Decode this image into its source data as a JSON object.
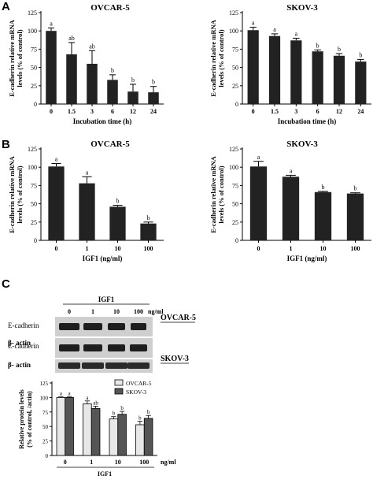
{
  "panels": {
    "A": {
      "letter": "A"
    },
    "B": {
      "letter": "B"
    },
    "C": {
      "letter": "C"
    }
  },
  "chart_data": [
    {
      "id": "A-ovcar",
      "type": "bar",
      "title": "OVCAR-5",
      "categories": [
        "0",
        "1.5",
        "3",
        "6",
        "12",
        "24"
      ],
      "values": [
        100,
        68,
        55,
        33,
        17,
        16
      ],
      "errors": [
        4,
        16,
        18,
        7,
        10,
        8
      ],
      "letters": [
        "a",
        "ab",
        "ab",
        "b",
        "b",
        "b"
      ],
      "ylabel": [
        "E-cadherin relative mRNA",
        "levels (% of control)"
      ],
      "xlabel": "Incubation time (h)",
      "ylim": [
        0,
        125
      ],
      "yticks": [
        0,
        25,
        50,
        75,
        100,
        125
      ],
      "grid": false
    },
    {
      "id": "A-skov",
      "type": "bar",
      "title": "SKOV-3",
      "categories": [
        "0",
        "1.5",
        "3",
        "6",
        "12",
        "24"
      ],
      "values": [
        101,
        93,
        87,
        72,
        66,
        58
      ],
      "errors": [
        4,
        3,
        3,
        2,
        3,
        3
      ],
      "letters": [
        "a",
        "a",
        "a",
        "b",
        "b",
        "b"
      ],
      "ylabel": [
        "E-cadherin relative mRNA",
        "levels (% of control)"
      ],
      "xlabel": "Incubation time (h)",
      "ylim": [
        0,
        125
      ],
      "yticks": [
        0,
        25,
        50,
        75,
        100,
        125
      ],
      "grid": false
    },
    {
      "id": "B-ovcar",
      "type": "bar",
      "title": "OVCAR-5",
      "categories": [
        "0",
        "1",
        "10",
        "100"
      ],
      "values": [
        101,
        78,
        46,
        23
      ],
      "errors": [
        4,
        9,
        2,
        2
      ],
      "letters": [
        "a",
        "a",
        "b",
        "b"
      ],
      "ylabel": [
        "E-cadherin relative mRNA",
        "levels (% of control)"
      ],
      "xlabel": "IGF1 (ng/ml)",
      "ylim": [
        0,
        125
      ],
      "yticks": [
        0,
        25,
        50,
        75,
        100,
        125
      ],
      "grid": false
    },
    {
      "id": "B-skov",
      "type": "bar",
      "title": "SKOV-3",
      "categories": [
        "0",
        "1",
        "10",
        "100"
      ],
      "values": [
        101,
        87,
        66,
        64
      ],
      "errors": [
        7,
        2,
        1,
        1
      ],
      "letters": [
        "a",
        "a",
        "b",
        "b"
      ],
      "ylabel": [
        "E-cadherin relative mRNA",
        "levels (% of control)"
      ],
      "xlabel": "IGF1 (ng/ml)",
      "ylim": [
        0,
        125
      ],
      "yticks": [
        0,
        25,
        50,
        75,
        100,
        125
      ],
      "grid": false
    },
    {
      "id": "C-protein",
      "type": "bar",
      "categories": [
        "0",
        "1",
        "10",
        "100"
      ],
      "series": [
        {
          "name": "OVCAR-5",
          "color": "#e8e8e8",
          "values": [
            100,
            89,
            63,
            53
          ],
          "errors": [
            1,
            5,
            4,
            6
          ],
          "letters": [
            "a",
            "a",
            "b",
            "b"
          ]
        },
        {
          "name": "SKOV-3",
          "color": "#555555",
          "values": [
            100,
            81,
            71,
            64
          ],
          "errors": [
            1,
            4,
            5,
            5
          ],
          "letters": [
            "a",
            "ab",
            "b",
            "b"
          ]
        }
      ],
      "ylabel": [
        "Relative protein levels",
        "(% of control, /actin)"
      ],
      "xlabel": "IGF1",
      "xunit": "ng/ml",
      "ylim": [
        0,
        125
      ],
      "yticks": [
        0,
        25,
        50,
        75,
        100,
        125
      ],
      "legend": "top-right",
      "grid": false
    }
  ],
  "blot": {
    "header": "IGF1",
    "doses": [
      "0",
      "1",
      "10",
      "100"
    ],
    "unit": "ng/ml",
    "rows": [
      {
        "label": "E-cadherin",
        "cell": ""
      },
      {
        "label": "β- actin",
        "cell": "OVCAR-5"
      },
      {
        "label": "E-cadherin",
        "cell": ""
      },
      {
        "label": "β- actin",
        "cell": "SKOV-3"
      }
    ]
  }
}
